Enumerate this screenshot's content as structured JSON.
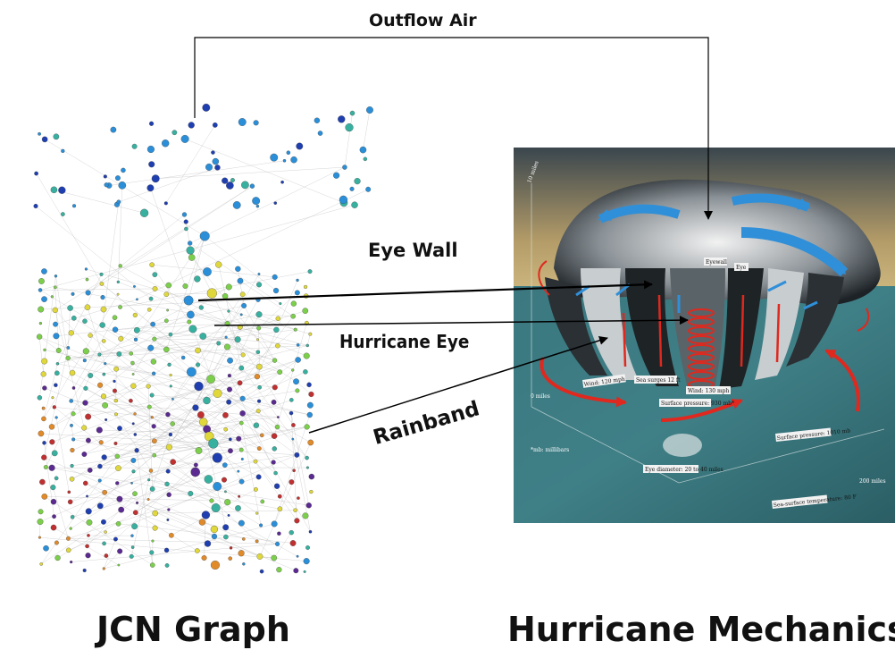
{
  "labels": {
    "outflow": "Outflow Air",
    "eye_wall": "Eye Wall",
    "hurricane_eye": "Hurricane Eye",
    "rainband": "Rainband"
  },
  "captions": {
    "left": "JCN Graph",
    "right": "Hurricane Mechanics"
  },
  "illustration_labels": {
    "altitude_top": "10 miles",
    "altitude_bottom": "0 miles",
    "eyewall": "Eyewall",
    "eye": "Eye",
    "wind_left": "Wind: 120 mph",
    "sea_surges": "Sea surges 12 ft",
    "wind_right": "Wind: 130 mph",
    "surface_pressure_center": "Surface pressure: 930 mb*",
    "surface_pressure_outer": "Surface pressure: 1010 mb",
    "millibars_note": "*mb: millibars",
    "eye_diameter": "Eye diameter: 20 to 40 miles",
    "distance": "200 miles",
    "sea_temp": "Sea-surface temperature: 80 F"
  },
  "colors": {
    "sky_top": "#3c4a52",
    "sky_warm": "#c9b27a",
    "sea": "#3f7f86",
    "sea_dark": "#2c5f66",
    "blue_arrow": "#2f8fd8",
    "red_arrow": "#e0281e",
    "graph_edge": "#b5b5b5"
  }
}
